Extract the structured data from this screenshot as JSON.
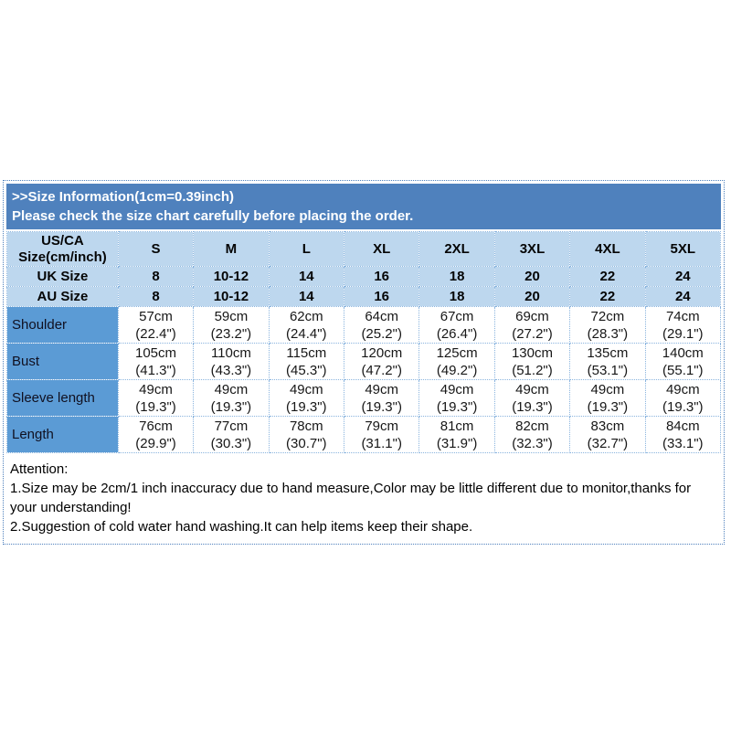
{
  "banner": {
    "line1": ">>Size Information(1cm=0.39inch)",
    "line2": "Please check the size chart carefully before placing the order."
  },
  "table": {
    "corner_header": "US/CA Size(cm/inch)",
    "size_columns": [
      "S",
      "M",
      "L",
      "XL",
      "2XL",
      "3XL",
      "4XL",
      "5XL"
    ],
    "uk": {
      "label": "UK Size",
      "values": [
        "8",
        "10-12",
        "14",
        "16",
        "18",
        "20",
        "22",
        "24"
      ]
    },
    "au": {
      "label": "AU Size",
      "values": [
        "8",
        "10-12",
        "14",
        "16",
        "18",
        "20",
        "22",
        "24"
      ]
    },
    "rows": [
      {
        "label": "Shoulder",
        "cells": [
          {
            "cm": "57cm",
            "inch": "(22.4\")"
          },
          {
            "cm": "59cm",
            "inch": "(23.2\")"
          },
          {
            "cm": "62cm",
            "inch": "(24.4\")"
          },
          {
            "cm": "64cm",
            "inch": "(25.2\")"
          },
          {
            "cm": "67cm",
            "inch": "(26.4\")"
          },
          {
            "cm": "69cm",
            "inch": "(27.2\")"
          },
          {
            "cm": "72cm",
            "inch": "(28.3\")"
          },
          {
            "cm": "74cm",
            "inch": "(29.1\")"
          }
        ]
      },
      {
        "label": "Bust",
        "cells": [
          {
            "cm": "105cm",
            "inch": "(41.3\")"
          },
          {
            "cm": "110cm",
            "inch": "(43.3\")"
          },
          {
            "cm": "115cm",
            "inch": "(45.3\")"
          },
          {
            "cm": "120cm",
            "inch": "(47.2\")"
          },
          {
            "cm": "125cm",
            "inch": "(49.2\")"
          },
          {
            "cm": "130cm",
            "inch": "(51.2\")"
          },
          {
            "cm": "135cm",
            "inch": "(53.1\")"
          },
          {
            "cm": "140cm",
            "inch": "(55.1\")"
          }
        ]
      },
      {
        "label": "Sleeve length",
        "cells": [
          {
            "cm": "49cm",
            "inch": "(19.3\")"
          },
          {
            "cm": "49cm",
            "inch": "(19.3\")"
          },
          {
            "cm": "49cm",
            "inch": "(19.3\")"
          },
          {
            "cm": "49cm",
            "inch": "(19.3\")"
          },
          {
            "cm": "49cm",
            "inch": "(19.3\")"
          },
          {
            "cm": "49cm",
            "inch": "(19.3\")"
          },
          {
            "cm": "49cm",
            "inch": "(19.3\")"
          },
          {
            "cm": "49cm",
            "inch": "(19.3\")"
          }
        ]
      },
      {
        "label": "Length",
        "cells": [
          {
            "cm": "76cm",
            "inch": "(29.9\")"
          },
          {
            "cm": "77cm",
            "inch": "(30.3\")"
          },
          {
            "cm": "78cm",
            "inch": "(30.7\")"
          },
          {
            "cm": "79cm",
            "inch": "(31.1\")"
          },
          {
            "cm": "81cm",
            "inch": "(31.9\")"
          },
          {
            "cm": "82cm",
            "inch": "(32.3\")"
          },
          {
            "cm": "83cm",
            "inch": "(32.7\")"
          },
          {
            "cm": "84cm",
            "inch": "(33.1\")"
          }
        ]
      }
    ]
  },
  "attention": {
    "heading": "Attention:",
    "items": [
      "1.Size may be 2cm/1 inch inaccuracy due to hand measure,Color may be little different due to monitor,thanks for your understanding!",
      "2.Suggestion of cold water hand washing.It can help items keep their shape."
    ]
  },
  "colors": {
    "banner_blue": "#4f81bd",
    "header_light_blue": "#bdd7ee",
    "row_label_blue": "#5b9bd5",
    "border_blue": "#4f81bd",
    "banner_text": "#ffffff"
  }
}
